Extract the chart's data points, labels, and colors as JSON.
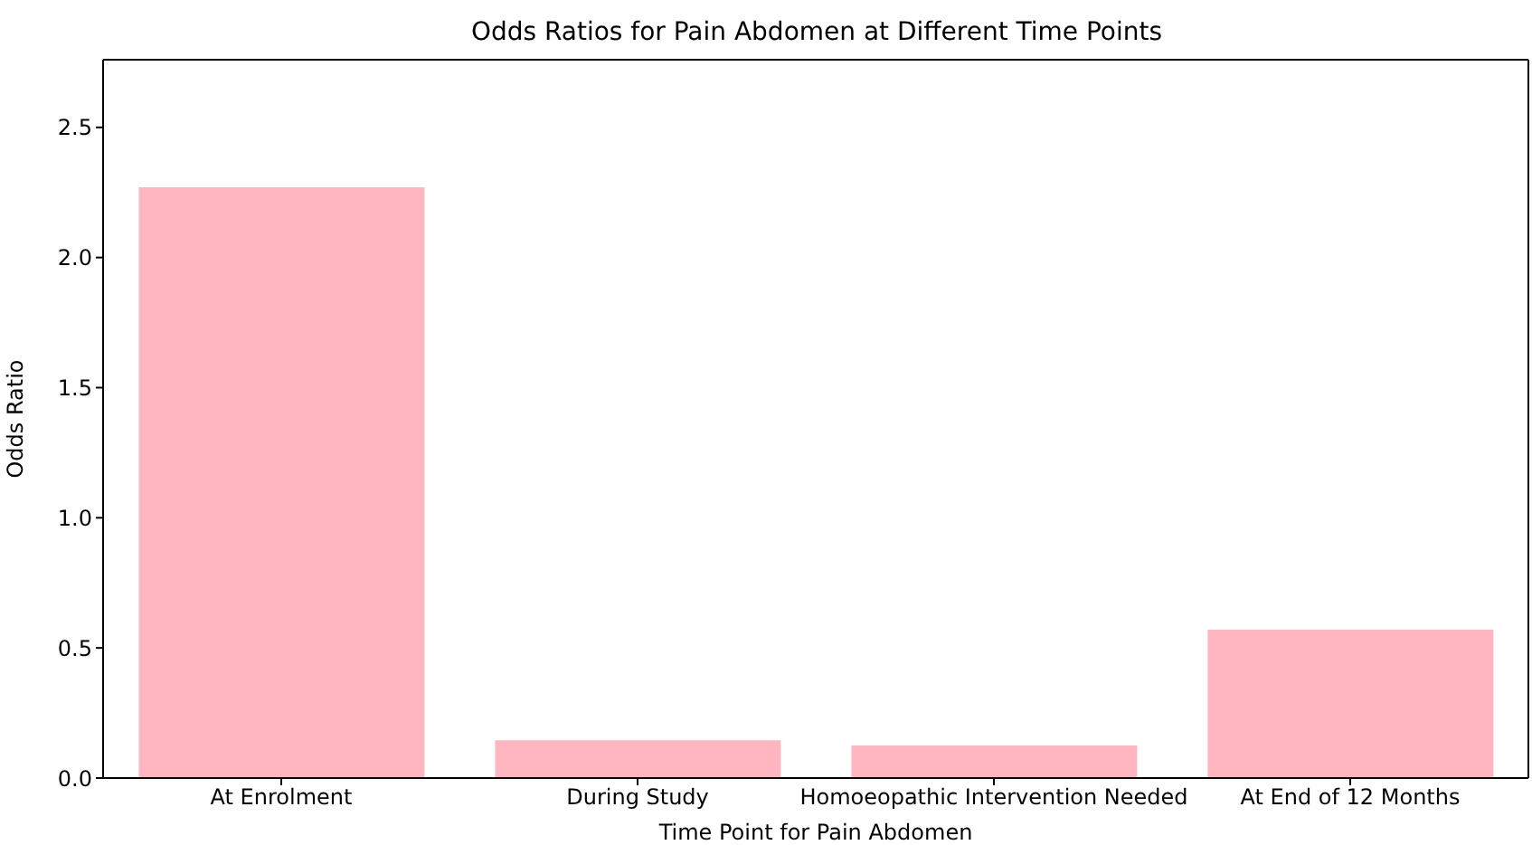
{
  "chart_data": {
    "type": "bar",
    "title": "Odds Ratios for Pain Abdomen at Different Time Points",
    "xlabel": "Time Point for Pain Abdomen",
    "ylabel": "Odds Ratio",
    "categories": [
      "At Enrolment",
      "During Study",
      "Homoeopathic Intervention Needed",
      "At End of 12 Months"
    ],
    "values": [
      2.27,
      0.145,
      0.125,
      0.57
    ],
    "color": "#ffb6c1",
    "ylim": [
      0,
      2.76
    ],
    "yticks": [
      {
        "value": 0,
        "label": "0.0"
      },
      0.5,
      {
        "value": 1,
        "label": "1.0"
      },
      1.5,
      {
        "value": 2,
        "label": "2.0"
      },
      2.5
    ]
  }
}
